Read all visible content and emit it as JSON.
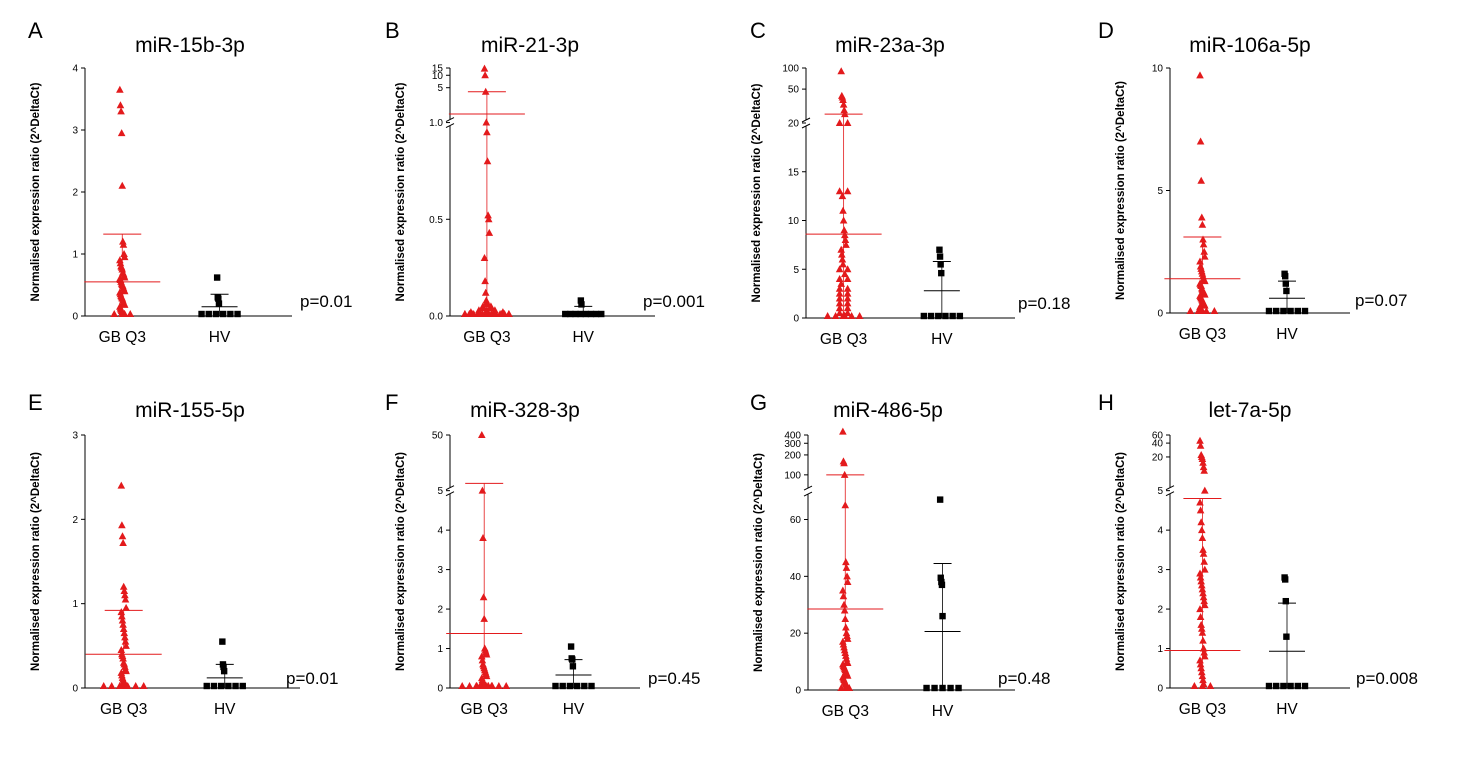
{
  "figure": {
    "ylabel": "Normalised expression ratio (2^DeltaCt)"
  },
  "chart_data": [
    {
      "type": "scatter",
      "panel_letter": "A",
      "title": "miR-15b-3p",
      "ylabel": "Normalised expression ratio (2^DeltaCt)",
      "categories": [
        "GB Q3",
        "HV"
      ],
      "ylim": [
        0,
        4
      ],
      "yticks": [
        0,
        1,
        2,
        3,
        4
      ],
      "pvalue": "p=0.01",
      "series": [
        {
          "name": "GB Q3",
          "color": "#e31a1c",
          "marker": "triangle",
          "mean": 0.55,
          "sd_upper": 1.32,
          "values": [
            3.65,
            3.4,
            3.3,
            2.95,
            2.1,
            1.2,
            1.15,
            1.0,
            0.95,
            0.9,
            0.85,
            0.8,
            0.78,
            0.75,
            0.7,
            0.68,
            0.65,
            0.62,
            0.6,
            0.58,
            0.55,
            0.52,
            0.5,
            0.48,
            0.45,
            0.42,
            0.4,
            0.38,
            0.35,
            0.32,
            0.3,
            0.28,
            0.25,
            0.22,
            0.2,
            0.18,
            0.15,
            0.12,
            0.1,
            0.08,
            0.06,
            0.04,
            0.03,
            0.02,
            0.01,
            0.0,
            0.0,
            0.0
          ]
        },
        {
          "name": "HV",
          "color": "#000000",
          "marker": "square",
          "mean": 0.15,
          "sd_upper": 0.35,
          "values": [
            0.62,
            0.3,
            0.28,
            0.2,
            0.0,
            0.0,
            0.0,
            0.0,
            0.0,
            0.0
          ]
        }
      ]
    },
    {
      "type": "scatter",
      "panel_letter": "B",
      "title": "miR-21-3p",
      "ylabel": "Normalised expression ratio (2^DeltaCt)",
      "categories": [
        "GB Q3",
        "HV"
      ],
      "yticks": [
        0.0,
        0.5,
        1.0,
        5,
        10,
        15
      ],
      "axis_break": {
        "lower": [
          0,
          1.0
        ],
        "upper": [
          1.0,
          15
        ]
      },
      "pvalue": "p=0.001",
      "series": [
        {
          "name": "GB Q3",
          "color": "#e31a1c",
          "marker": "triangle",
          "mean": 1.15,
          "sd_upper": 4.0,
          "values": [
            14.5,
            10.0,
            4.0,
            1.0,
            0.95,
            0.8,
            0.52,
            0.5,
            0.43,
            0.3,
            0.18,
            0.12,
            0.08,
            0.07,
            0.06,
            0.05,
            0.05,
            0.04,
            0.04,
            0.03,
            0.03,
            0.03,
            0.02,
            0.02,
            0.02,
            0.02,
            0.02,
            0.01,
            0.01,
            0.01,
            0.01,
            0.01,
            0.01,
            0.01,
            0.0,
            0.0,
            0.0,
            0.0,
            0.0,
            0.0,
            0.0,
            0.0,
            0.0,
            0.0,
            0.0
          ]
        },
        {
          "name": "HV",
          "color": "#000000",
          "marker": "square",
          "mean": 0.01,
          "sd_upper": 0.05,
          "values": [
            0.08,
            0.06,
            0.0,
            0.0,
            0.0,
            0.0,
            0.0,
            0.0,
            0.0,
            0.0
          ]
        }
      ]
    },
    {
      "type": "scatter",
      "panel_letter": "C",
      "title": "miR-23a-3p",
      "ylabel": "Normalised expression ratio (2^DeltaCt)",
      "categories": [
        "GB Q3",
        "HV"
      ],
      "yticks": [
        0,
        5,
        10,
        15,
        20,
        50,
        100
      ],
      "axis_break": {
        "lower": [
          0,
          20
        ],
        "upper": [
          20,
          100
        ]
      },
      "pvalue": "p=0.18",
      "series": [
        {
          "name": "GB Q3",
          "color": "#e31a1c",
          "marker": "triangle",
          "mean": 8.6,
          "sd_upper": 22,
          "values": [
            90,
            40,
            38,
            35,
            30,
            25,
            22,
            20,
            20,
            13,
            13,
            12.5,
            11,
            10,
            9,
            8.5,
            8,
            7.5,
            7,
            6.5,
            6,
            5.5,
            5,
            5,
            4.5,
            4,
            4,
            3.5,
            3,
            3,
            2.5,
            2.5,
            2,
            2,
            1.5,
            1.5,
            1,
            1,
            0.5,
            0.5,
            0.3,
            0.2,
            0.1,
            0.0,
            0.0,
            0.0,
            0.0,
            0.0
          ]
        },
        {
          "name": "HV",
          "color": "#000000",
          "marker": "square",
          "mean": 2.8,
          "sd_upper": 5.8,
          "values": [
            7.0,
            6.3,
            5.5,
            4.6,
            0.0,
            0.0,
            0.0,
            0.0,
            0.0,
            0.0
          ]
        }
      ]
    },
    {
      "type": "scatter",
      "panel_letter": "D",
      "title": "miR-106a-5p",
      "ylabel": "Normalised expression ratio (2^DeltaCt)",
      "categories": [
        "GB Q3",
        "HV"
      ],
      "ylim": [
        0,
        10
      ],
      "yticks": [
        0,
        5,
        10
      ],
      "pvalue": "p=0.07",
      "series": [
        {
          "name": "GB Q3",
          "color": "#e31a1c",
          "marker": "triangle",
          "mean": 1.4,
          "sd_upper": 3.1,
          "values": [
            9.7,
            7.0,
            5.4,
            3.9,
            3.6,
            3.0,
            2.8,
            2.5,
            2.3,
            2.1,
            1.9,
            1.8,
            1.7,
            1.6,
            1.5,
            1.4,
            1.35,
            1.3,
            1.2,
            1.15,
            1.1,
            1.0,
            0.95,
            0.9,
            0.85,
            0.8,
            0.75,
            0.7,
            0.65,
            0.6,
            0.55,
            0.5,
            0.45,
            0.4,
            0.35,
            0.3,
            0.25,
            0.2,
            0.15,
            0.1,
            0.05,
            0.0,
            0.0,
            0.0,
            0.0
          ]
        },
        {
          "name": "HV",
          "color": "#000000",
          "marker": "square",
          "mean": 0.6,
          "sd_upper": 1.3,
          "values": [
            1.6,
            1.5,
            1.2,
            0.9,
            0.0,
            0.0,
            0.0,
            0.0,
            0.0,
            0.0
          ]
        }
      ]
    },
    {
      "type": "scatter",
      "panel_letter": "E",
      "title": "miR-155-5p",
      "ylabel": "Normalised expression ratio (2^DeltaCt)",
      "categories": [
        "GB Q3",
        "HV"
      ],
      "ylim": [
        0,
        3
      ],
      "yticks": [
        0,
        1,
        2,
        3
      ],
      "pvalue": "p=0.01",
      "series": [
        {
          "name": "GB Q3",
          "color": "#e31a1c",
          "marker": "triangle",
          "mean": 0.4,
          "sd_upper": 0.92,
          "values": [
            2.4,
            1.93,
            1.8,
            1.72,
            1.2,
            1.15,
            1.1,
            1.05,
            0.95,
            0.9,
            0.85,
            0.8,
            0.75,
            0.7,
            0.65,
            0.6,
            0.55,
            0.5,
            0.45,
            0.4,
            0.38,
            0.35,
            0.3,
            0.28,
            0.25,
            0.22,
            0.2,
            0.18,
            0.15,
            0.12,
            0.1,
            0.08,
            0.06,
            0.05,
            0.04,
            0.03,
            0.02,
            0.01,
            0.0,
            0.0,
            0.0,
            0.0,
            0.0,
            0.0
          ]
        },
        {
          "name": "HV",
          "color": "#000000",
          "marker": "square",
          "mean": 0.12,
          "sd_upper": 0.28,
          "values": [
            0.55,
            0.28,
            0.25,
            0.2,
            0.0,
            0.0,
            0.0,
            0.0,
            0.0,
            0.0
          ]
        }
      ]
    },
    {
      "type": "scatter",
      "panel_letter": "F",
      "title": "miR-328-3p",
      "ylabel": "Normalised expression ratio (2^DeltaCt)",
      "categories": [
        "GB Q3",
        "HV"
      ],
      "yticks": [
        0,
        1,
        2,
        3,
        4,
        5,
        50
      ],
      "axis_break": {
        "lower": [
          0,
          5
        ],
        "upper": [
          5,
          50
        ]
      },
      "pvalue": "p=0.45",
      "series": [
        {
          "name": "GB Q3",
          "color": "#e31a1c",
          "marker": "triangle",
          "mean": 1.38,
          "sd_upper": 5.3,
          "values": [
            50,
            5.0,
            3.8,
            2.3,
            1.75,
            1.0,
            0.95,
            0.9,
            0.85,
            0.8,
            0.7,
            0.6,
            0.55,
            0.5,
            0.45,
            0.4,
            0.35,
            0.3,
            0.25,
            0.2,
            0.15,
            0.12,
            0.1,
            0.08,
            0.07,
            0.06,
            0.05,
            0.05,
            0.04,
            0.04,
            0.03,
            0.03,
            0.02,
            0.02,
            0.01,
            0.01,
            0.01,
            0.0,
            0.0,
            0.0,
            0.0,
            0.0,
            0.0,
            0.0
          ]
        },
        {
          "name": "HV",
          "color": "#000000",
          "marker": "square",
          "mean": 0.33,
          "sd_upper": 0.72,
          "values": [
            1.05,
            0.75,
            0.72,
            0.55,
            0.0,
            0.0,
            0.0,
            0.0,
            0.0,
            0.0
          ]
        }
      ]
    },
    {
      "type": "scatter",
      "panel_letter": "G",
      "title": "miR-486-5p",
      "ylabel": "Normalised expression ratio (2^DeltaCt)",
      "categories": [
        "GB Q3",
        "HV"
      ],
      "yticks": [
        0,
        20,
        40,
        60,
        100,
        200,
        300,
        400
      ],
      "axis_break": {
        "lower": [
          0,
          70
        ],
        "upper": [
          70,
          400
        ]
      },
      "pvalue": "p=0.48",
      "series": [
        {
          "name": "GB Q3",
          "color": "#e31a1c",
          "marker": "triangle",
          "mean": 28.5,
          "sd_upper": 100,
          "values": [
            450,
            160,
            150,
            100,
            65,
            45,
            43,
            40,
            38,
            35,
            33,
            30,
            28,
            25,
            22,
            20,
            19,
            18,
            17,
            16,
            15,
            14,
            13,
            12,
            11,
            10,
            9.5,
            9,
            8.5,
            8,
            7.5,
            7,
            6.5,
            6,
            5.5,
            5,
            4.5,
            4,
            3.5,
            3,
            2.5,
            2,
            1.5,
            1,
            0.5,
            0.0,
            0.0
          ]
        },
        {
          "name": "HV",
          "color": "#000000",
          "marker": "square",
          "mean": 20.6,
          "sd_upper": 44.5,
          "values": [
            67,
            39.5,
            38,
            37,
            26,
            0.0,
            0.0,
            0.0,
            0.0,
            0.0
          ]
        }
      ]
    },
    {
      "type": "scatter",
      "panel_letter": "H",
      "title": "let-7a-5p",
      "ylabel": "Normalised expression ratio (2^DeltaCt)",
      "categories": [
        "GB Q3",
        "HV"
      ],
      "yticks": [
        0,
        1,
        2,
        3,
        4,
        5,
        20,
        40,
        60
      ],
      "axis_break": {
        "lower": [
          0,
          5
        ],
        "upper": [
          5,
          60
        ]
      },
      "pvalue": "p=0.008",
      "series": [
        {
          "name": "GB Q3",
          "color": "#e31a1c",
          "marker": "triangle",
          "mean": 0.95,
          "sd_upper": 4.8,
          "values": [
            45,
            35,
            22,
            20,
            18,
            15,
            12,
            10,
            5.0,
            4.7,
            4.5,
            4.2,
            4.0,
            3.8,
            3.5,
            3.4,
            3.2,
            3.0,
            2.9,
            2.8,
            2.7,
            2.6,
            2.5,
            2.4,
            2.3,
            2.2,
            2.1,
            2.0,
            1.8,
            1.6,
            1.5,
            1.4,
            1.2,
            1.0,
            0.9,
            0.8,
            0.7,
            0.6,
            0.5,
            0.4,
            0.3,
            0.2,
            0.1,
            0.0,
            0.0,
            0.0
          ]
        },
        {
          "name": "HV",
          "color": "#000000",
          "marker": "square",
          "mean": 0.93,
          "sd_upper": 2.15,
          "values": [
            2.8,
            2.75,
            2.2,
            1.3,
            0.0,
            0.0,
            0.0,
            0.0,
            0.0,
            0.0
          ]
        }
      ]
    }
  ]
}
